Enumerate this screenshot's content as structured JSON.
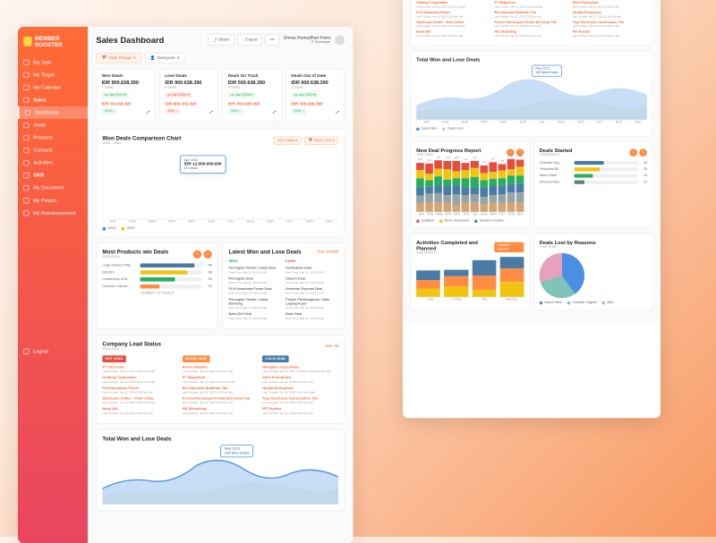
{
  "brand": "MEMBER ROOSTER",
  "page_title": "Sales Dashboard",
  "user": {
    "name": "Dimas Ramadhan Putra",
    "role": "IT Developer"
  },
  "hdr_btns": {
    "share": "Share",
    "export": "Export",
    "more": "•••"
  },
  "nav": [
    {
      "label": "My Task"
    },
    {
      "label": "My Target"
    },
    {
      "label": "My Calendar"
    },
    {
      "label": "Sales",
      "bold": true
    },
    {
      "label": "Dashboard",
      "active": true
    },
    {
      "label": "Deals"
    },
    {
      "label": "Products"
    },
    {
      "label": "Contacts"
    },
    {
      "label": "Activities"
    },
    {
      "label": "OKR",
      "bold": true
    },
    {
      "label": "My Document"
    },
    {
      "label": "My Project"
    },
    {
      "label": "My Reimbursement"
    }
  ],
  "logout": "Logout",
  "filters": {
    "range": "Date Range",
    "everyone": "Everyone"
  },
  "kpi": [
    {
      "t": "Won Deals",
      "v": "IDR 900.638.390",
      "s": "2 Deals",
      "b": "vs Jan 2023",
      "bcls": "b-grn",
      "m": "IDR 50.638.390",
      "pct": "12% ↑",
      "pcls": "b-grn"
    },
    {
      "t": "Lose Deals",
      "v": "IDR 900.638.390",
      "s": "2 Deals",
      "b": "vs Jan 2023",
      "bcls": "b-red",
      "m": "IDR 800.342.390",
      "pct": "10% ↓",
      "pcls": "b-red"
    },
    {
      "t": "Deals On Track",
      "v": "IDR 500.638.390",
      "s": "4 Deals",
      "b": "vs Jan 2023",
      "bcls": "b-grn",
      "m": "IDR 300.638.390",
      "pct": "12% ↑",
      "pcls": "b-grn"
    },
    {
      "t": "Deals Out of Date",
      "v": "IDR 900.638.390",
      "s": "2 Deals",
      "b": "vs Jan 2023",
      "bcls": "b-grn",
      "m": "IDR 300.638.390",
      "pct": "12% ↑",
      "pcls": "b-grn"
    }
  ],
  "chart": {
    "title": "Won Deals Comparison Chart",
    "sub": "2023 - 2024",
    "ylab": "Sales Value",
    "filters": {
      "won": "Won Deals",
      "year": "Select Year"
    },
    "months": [
      "JAN",
      "FEB",
      "MAR",
      "APR",
      "MAY",
      "JUN",
      "JUL",
      "AUG",
      "SEP",
      "OCT",
      "NOV",
      "DEC"
    ],
    "s1": [
      22,
      48,
      40,
      70,
      62,
      95,
      47,
      78,
      55,
      90,
      60,
      98
    ],
    "s2": [
      18,
      35,
      30,
      58,
      50,
      82,
      38,
      65,
      45,
      78,
      48,
      85
    ],
    "c1": "#4a90e2",
    "c2": "#f1c40f",
    "legend": [
      "2023",
      "2024"
    ],
    "tooltip": {
      "t": "Apr 2024",
      "v": "IDR 12.000.000.000",
      "s": "10 Deals"
    }
  },
  "products": {
    "title": "Most Products win Deals",
    "sub": "2023-2024",
    "items": [
      {
        "l": "Lego Serious Play",
        "v": 55,
        "c": "#4a7ba6"
      },
      {
        "l": "EBOKS",
        "v": 48,
        "c": "#f1c40f"
      },
      {
        "l": "Leadership in M...",
        "v": 35,
        "c": "#27ae60"
      },
      {
        "l": "Outdoor Learnin...",
        "v": 20,
        "c": "#ff8c42"
      }
    ],
    "xlab": "NUMBER OF DEALS"
  },
  "latest": {
    "title": "Latest Won and Lose Deals",
    "link": "See Details",
    "won": [
      {
        "n": "Pemugran Taman Lansia Deal",
        "d": "Deal Time: Mar 11, 2023 12:00"
      },
      {
        "n": "Pemugran Deal",
        "d": "Deal Time: Mar 11, 2023 12:00"
      },
      {
        "n": "PLN Nusantara Power Deal",
        "d": "Deal Time: Mar 11, 2023 12:00"
      },
      {
        "n": "Pemugran Taman Lansia Bandung",
        "d": "Deal Time: Mar 11, 2023 12:00"
      },
      {
        "n": "Bank DKI Deal",
        "d": "Deal Time: Mar 11, 2023 12:00"
      }
    ],
    "lose": [
      {
        "n": "Sembaluan Deal",
        "d": "Deal Time: Mar 11, 2023 12:00"
      },
      {
        "n": "Dupont Deal",
        "d": "Deal Time: Mar 11, 2023 12:00"
      },
      {
        "n": "American Express Deal",
        "d": "Deal Time: Mar 11, 2023 12:00"
      },
      {
        "n": "Proyek Pembangunan Jalan Layang Kopo",
        "d": "Deal Time: Mar 11, 2023 12:00"
      },
      {
        "n": "Bose Deal",
        "d": "Deal Time: Mar 11, 2023 12:00"
      }
    ]
  },
  "leads": {
    "title": "Company Lead Status",
    "sub": "2023-2024",
    "link": "See All",
    "cols": [
      {
        "h": "HOT LEAD",
        "cls": "ch-red",
        "items": [
          {
            "n": "PT Usut Asal",
            "d": "Last Contact: Jan 11, 2023 12:00 by Email"
          },
          {
            "n": "Gudang Corporation",
            "d": "Last Contact: Jan 11, 2023 12:00 by Email"
          },
          {
            "n": "PLN Nusantara Power",
            "d": "Last Contact: Jan 11, 2023 12:00 by Call"
          },
          {
            "n": "Starbucks Coffee - Vista Coffee",
            "d": "Last Contact: Jan 11, 2023 12:00 by Email"
          },
          {
            "n": "Bank DKI",
            "d": "Last Contact: Jan 11, 2023 12:00 by Call"
          }
        ]
      },
      {
        "h": "WARM LEAD",
        "cls": "ch-org",
        "items": [
          {
            "n": "Perum Waskita",
            "d": "Last Contact: Jan 11, 2023 12:00 by Call"
          },
          {
            "n": "PT Megastore",
            "d": "Last Contact: Jan 11, 2023 12:00 by Email"
          },
          {
            "n": "BS Indonesia Budiman Tbk",
            "d": "Last Contact: Jan 11, 2023 12:00 by Call"
          },
          {
            "n": "Perum Firmansyah Pertiwi (Persero) Tbk",
            "d": "Last Contact: Jan 11, 2023 12:00 by Call"
          },
          {
            "n": "PB Sihombing",
            "d": "Last Contact: Jan 11, 2023 12:00 by Call"
          }
        ]
      },
      {
        "h": "COLD LEAD",
        "cls": "ch-blu",
        "items": [
          {
            "n": "Navigator Corporation",
            "d": "Last Contact: Apr 11, 2023 12:00 by Credential Meeting"
          },
          {
            "n": "Shell Enterprises",
            "d": "Last Contact: Jan 11, 2023 12:00 by Call"
          },
          {
            "n": "Honda Enterprises",
            "d": "Last Contact: Jan 11, 2023 12:00 by Email"
          },
          {
            "n": "Toyz Electronic Construction Tbk",
            "d": "Last Contact: Jan 11, 2023 12:00 by Call"
          },
          {
            "n": "IRT Nuraini",
            "d": "Last Contact: Jan 11, 2023 12:00 by Call"
          }
        ]
      }
    ]
  },
  "area": {
    "title": "Total Won and Lose Deals",
    "badge_t": "May 2023",
    "badge_v": "140 Won Deals",
    "months": [
      "JAN",
      "FEB",
      "MAR",
      "APR",
      "MAY",
      "JUN",
      "JUL",
      "AUG",
      "SEP",
      "OCT",
      "NOV",
      "DEC"
    ],
    "legend": [
      "Deals Won",
      "Deals Lose"
    ],
    "c1": "#4a90e2",
    "c2": "#b8d4dd"
  },
  "progress": {
    "title": "New Deal Progress Report",
    "sub": "THIS YEAR",
    "months": [
      "JAN",
      "FEB",
      "MAR",
      "APR",
      "MAY",
      "JUN",
      "JUL",
      "AUG",
      "SEP",
      "OCT",
      "NOV",
      "DEC"
    ],
    "tops": [
      "145",
      "131",
      "133",
      "139",
      "136",
      "145",
      "139",
      "143",
      "145",
      "144",
      "142",
      "145"
    ],
    "colors": [
      "#e74c3c",
      "#f1c40f",
      "#27ae60",
      "#4a7ba6",
      "#95a5a6",
      "#d4a574"
    ],
    "legend": [
      "Qualified",
      "Demo Scheduled",
      "Solution Creation"
    ]
  },
  "started": {
    "title": "Deals Started",
    "sub": "THIS MONTH",
    "items": [
      {
        "l": "Chandler Virg...",
        "v": 29,
        "c": "#4a7ba6"
      },
      {
        "l": "Yohannes BK",
        "v": 25,
        "c": "#f1c40f"
      },
      {
        "l": "Nanut Hardi",
        "v": 18,
        "c": "#27ae60"
      },
      {
        "l": "Alfonsus Ram...",
        "v": 10,
        "c": "#5b8a72"
      }
    ]
  },
  "activities": {
    "title": "Activities Completed and Planned",
    "sub": "THIS MONTH",
    "btn": "Activities Counter",
    "cats": [
      "Call",
      "Email",
      "Visit",
      "Meeting"
    ],
    "colors": [
      "#f1c40f",
      "#ff8c42",
      "#4a7ba6"
    ]
  },
  "lost": {
    "title": "Deals Lost by Reasons",
    "sub": "THIS YEAR",
    "slices": [
      {
        "l": "Nanut Hardi",
        "v": 40,
        "c": "#4a90e2"
      },
      {
        "l": "Chandler Virginia",
        "v": 30,
        "c": "#7fc4b8"
      },
      {
        "l": "Alfre",
        "v": 30,
        "c": "#e8a0bf"
      }
    ]
  }
}
